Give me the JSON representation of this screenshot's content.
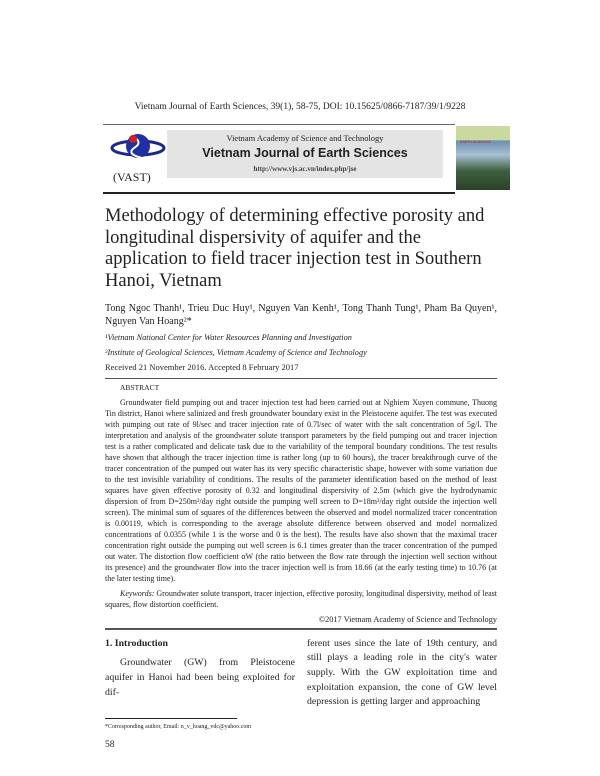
{
  "header": {
    "citation": "Vietnam Journal of Earth Sciences, 39(1), 58-75, DOI: 10.15625/0866-7187/39/1/9228",
    "publisher": "Vietnam Academy of Science and Technology",
    "journal": "Vietnam Journal of Earth Sciences",
    "url": "http://www.vjs.ac.vn/index.php/jse",
    "logo_label": "(VAST)",
    "cover_title": "EARTH SCIENCES"
  },
  "title": "Methodology of determining effective porosity and longitudinal dispersivity of aquifer and the application to field tracer injection test in Southern Hanoi, Vietnam",
  "authors": "Tong Ngoc Thanh¹, Trieu Duc Huy¹, Nguyen Van Kenh¹, Tong Thanh Tung¹, Pham Ba Quyen¹, Nguyen Van Hoang²*",
  "affiliations": [
    "¹Vietnam National Center for Water Resources Planning and Investigation",
    "²Institute of Geological Sciences, Vietnam Academy of Science and Technology"
  ],
  "received": "Received 21 November 2016. Accepted 8 February 2017",
  "abstract": {
    "heading": "ABSTRACT",
    "text": "Groundwater field pumping out and tracer injection test had been carried out at Nghiem Xuyen commune, Thuong Tin district, Hanoi where salinized and fresh groundwater boundary exist in the Pleistocene aquifer. The test was executed with pumping out rate of 9l/sec and tracer injection rate of 0.7l/sec of water with the salt concentration of 5g/l. The interpretation and analysis of the groundwater solute transport parameters by the field pumping out and tracer injection test is a rather complicated and delicate task due to the variability of the temporal boundary conditions. The test results have shown that although the tracer injection time is rather long (up to 60 hours), the tracer breakthrough curve of the tracer concentration of the pumped out water has its very specific characteristic shape, however with some variation due to the test invisible variability of conditions. The results of the parameter identification based on the method of least squares have given effective porosity of 0.32 and longitudinal dispersivity of 2.5m (which give the hydrodynamic dispersion of from D=250m²/day right outside the pumping well screen to D=18m²/day right outside the injection well screen). The minimal sum of squares of the differences between the observed and model normalized tracer concentration is 0.00119, which is corresponding to the average absolute difference between observed and model normalized concentrations of 0.0355 (while 1 is the worse and 0 is the best). The results have also shown that the maximal tracer concentration right outside the pumping out well screen is 6.1 times greater than the tracer concentration of the pumped out water. The distortion flow coefficient αW (the ratio between the flow rate through the injection well section without its presence) and the groundwater flow into the tracer injection well is from 18.66 (at the early testing time) to 10.76 (at the later testing time).",
    "keywords_label": "Keywords:",
    "keywords": " Groundwater solute transport, tracer injection, effective porosity, longitudinal dispersivity, method of least squares, flow distortion coefficient."
  },
  "copyright": "©2017 Vietnam Academy of Science and Technology",
  "intro": {
    "heading": "1. Introduction",
    "left": "Groundwater (GW) from Pleistocene aquifer in Hanoi had been being exploited for dif-",
    "right": "ferent uses since the late of 19th century, and still plays a leading role in the city's water supply. With the GW exploitation time and exploitation expansion, the cone of GW level depression is getting larger and approaching"
  },
  "footnote": "*Corresponding author, Email: n_v_hoang_vdc@yahoo.com",
  "page_number": "58"
}
